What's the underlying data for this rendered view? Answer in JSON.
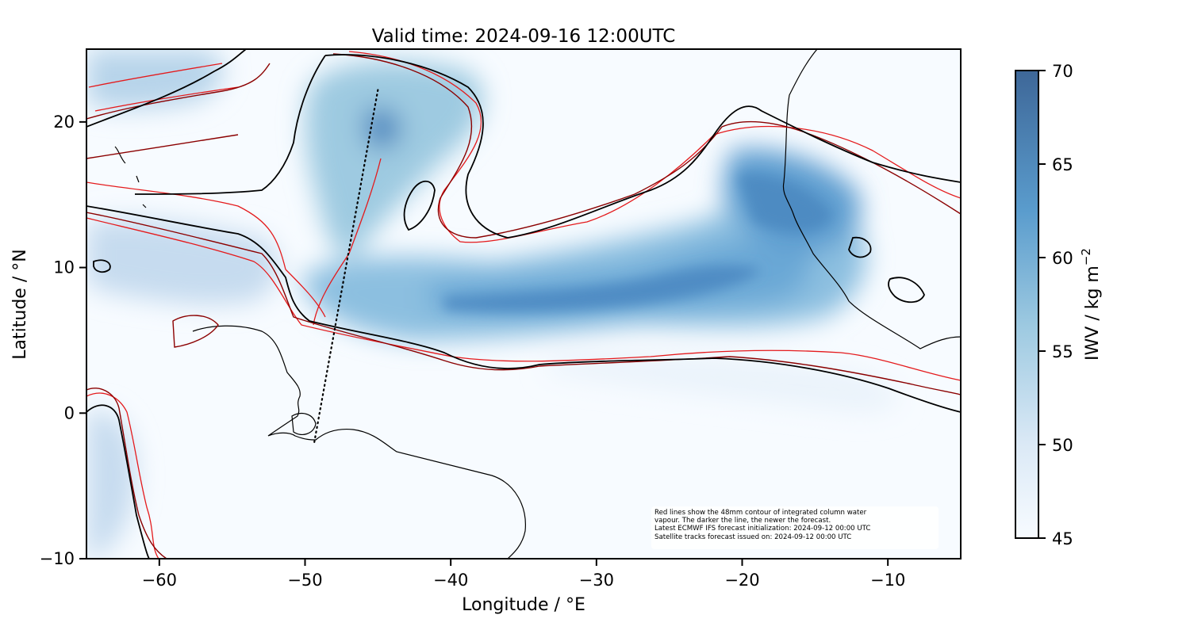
{
  "title": "Valid time: 2024-09-16 12:00UTC",
  "xlabel": "Longitude / °E",
  "ylabel": "Latitude / °N",
  "x_ticks": [
    -60,
    -50,
    -40,
    -30,
    -20,
    -10
  ],
  "y_ticks": [
    20,
    10,
    0,
    -10
  ],
  "xlim": [
    -65,
    -5
  ],
  "ylim": [
    -10,
    25
  ],
  "colorbar": {
    "label": "IWV / kg m",
    "label_exponent": "−2",
    "min": 45,
    "max": 70,
    "ticks": [
      70,
      65,
      60,
      55,
      50,
      45
    ],
    "color_low": "#f7fbff",
    "color_high": "#3e6798"
  },
  "annotation": {
    "line1": "Red lines show the 48mm contour of integrated column water",
    "line2": "vapour. The darker the line, the newer the forecast.",
    "line3": "Latest ECMWF IFS forecast initialization: 2024-09-12 00:00 UTC",
    "line4": "Satellite tracks forecast issued on: 2024-09-12 00:00 UTC"
  },
  "colors": {
    "contour_old": "#e41a1c",
    "contour_mid": "#8b0000",
    "contour_new": "#000000",
    "coastline": "#000000",
    "track": "#000000"
  },
  "satellite_track": {
    "start": [
      -45.0,
      22.2
    ],
    "end": [
      -49.4,
      -2.2
    ]
  },
  "tick_label_format": "minus sign U+2212 for negatives"
}
